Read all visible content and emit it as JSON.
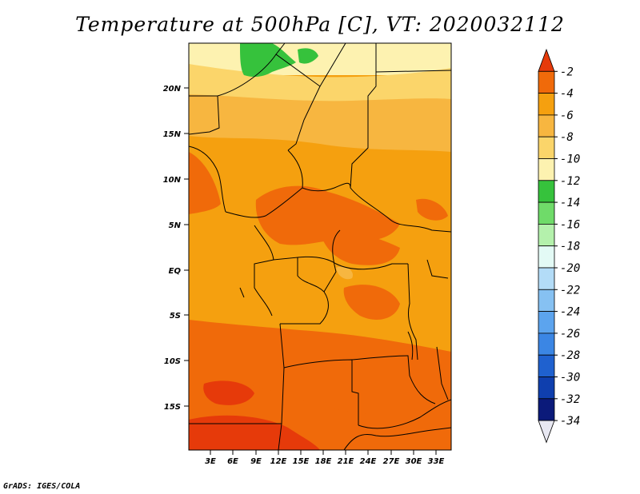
{
  "title": "Temperature at 500hPa [C], VT: 2020032112",
  "credit": "GrADS: IGES/COLA",
  "map": {
    "lat_labels": [
      "20N",
      "15N",
      "10N",
      "5N",
      "EQ",
      "5S",
      "10S",
      "15S"
    ],
    "lon_labels": [
      "3E",
      "6E",
      "9E",
      "12E",
      "15E",
      "18E",
      "21E",
      "24E",
      "27E",
      "30E",
      "33E"
    ]
  },
  "colorbar": {
    "labels": [
      "-2",
      "-4",
      "-6",
      "-8",
      "-10",
      "-12",
      "-14",
      "-16",
      "-18",
      "-20",
      "-22",
      "-24",
      "-26",
      "-28",
      "-30",
      "-32",
      "-34"
    ],
    "colors": [
      "#e63a0a",
      "#f06a0a",
      "#f5a00f",
      "#f7b640",
      "#fbd56a",
      "#fdf2b0",
      "#36c23c",
      "#6fdb69",
      "#b4f1ac",
      "#e3faf5",
      "#b3dcf7",
      "#86c1f2",
      "#5ca4ee",
      "#3b86e4",
      "#1f61cf",
      "#0f3fae",
      "#0b1a7a",
      "#e8e8f2"
    ]
  }
}
